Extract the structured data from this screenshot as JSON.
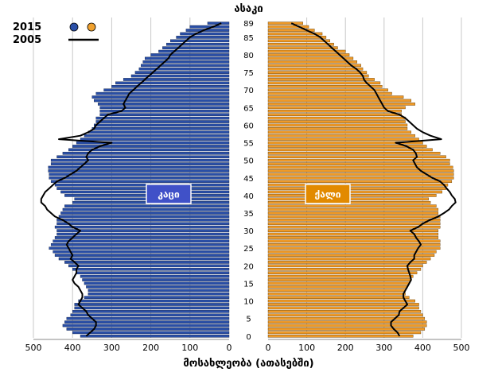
{
  "chart_data": {
    "type": "bar",
    "orientation": "horizontal",
    "layout": "population-pyramid",
    "age_axis_title": "ასაკი",
    "value_axis_title": "მოსახლეობა (ათასებში)",
    "age_tick_labels": [
      "0",
      "5",
      "10",
      "15",
      "20",
      "25",
      "30",
      "35",
      "40",
      "45",
      "50",
      "55",
      "60",
      "65",
      "70",
      "75",
      "80",
      "85",
      "89"
    ],
    "value_tick_labels_left": [
      "500",
      "400",
      "300",
      "200",
      "100",
      "0"
    ],
    "value_tick_labels_right": [
      "0",
      "100",
      "200",
      "300",
      "400",
      "500"
    ],
    "xlim": [
      0,
      500
    ],
    "age_range": [
      0,
      89
    ],
    "grid": true,
    "legend_position": "top-left",
    "legend": [
      {
        "label": "2015",
        "kind": "markers",
        "colors": [
          "#2a4fa7",
          "#f0a12e"
        ]
      },
      {
        "label": "2005",
        "kind": "line",
        "color": "#000000"
      }
    ],
    "panels": [
      {
        "side": "left",
        "label": "კაცი",
        "bar_color": "#2a4fa7",
        "box_color": "#4051c8"
      },
      {
        "side": "right",
        "label": "ქალი",
        "bar_color": "#ef9a28",
        "box_color": "#e28a00"
      }
    ],
    "ages": [
      0,
      1,
      2,
      3,
      4,
      5,
      6,
      7,
      8,
      9,
      10,
      11,
      12,
      13,
      14,
      15,
      16,
      17,
      18,
      19,
      20,
      21,
      22,
      23,
      24,
      25,
      26,
      27,
      28,
      29,
      30,
      31,
      32,
      33,
      34,
      35,
      36,
      37,
      38,
      39,
      40,
      41,
      42,
      43,
      44,
      45,
      46,
      47,
      48,
      49,
      50,
      51,
      52,
      53,
      54,
      55,
      56,
      57,
      58,
      59,
      60,
      61,
      62,
      63,
      64,
      65,
      66,
      67,
      68,
      69,
      70,
      71,
      72,
      73,
      74,
      75,
      76,
      77,
      78,
      79,
      80,
      81,
      82,
      83,
      84,
      85,
      86,
      87,
      88,
      89
    ],
    "series": [
      {
        "name": "2015",
        "sex": "კაცი",
        "values": [
          380,
          400,
          415,
          425,
          420,
          415,
          405,
          400,
          395,
          395,
          385,
          370,
          360,
          360,
          365,
          370,
          375,
          380,
          390,
          400,
          410,
          420,
          435,
          445,
          450,
          460,
          455,
          450,
          445,
          440,
          440,
          445,
          440,
          440,
          435,
          430,
          425,
          420,
          400,
          395,
          420,
          430,
          440,
          445,
          455,
          460,
          460,
          462,
          462,
          455,
          455,
          440,
          425,
          410,
          400,
          390,
          380,
          370,
          360,
          350,
          345,
          340,
          340,
          330,
          330,
          330,
          335,
          345,
          350,
          340,
          320,
          300,
          290,
          270,
          250,
          240,
          230,
          225,
          220,
          215,
          200,
          180,
          170,
          160,
          150,
          135,
          125,
          110,
          100,
          55
        ]
      },
      {
        "name": "2015",
        "sex": "ქალი",
        "values": [
          375,
          395,
          405,
          410,
          410,
          405,
          400,
          395,
          390,
          390,
          380,
          365,
          355,
          355,
          360,
          365,
          370,
          375,
          385,
          395,
          400,
          410,
          420,
          430,
          435,
          445,
          445,
          445,
          440,
          440,
          440,
          445,
          445,
          445,
          445,
          440,
          440,
          435,
          420,
          415,
          435,
          450,
          460,
          465,
          475,
          480,
          480,
          480,
          478,
          470,
          470,
          460,
          445,
          425,
          410,
          400,
          390,
          380,
          370,
          360,
          360,
          355,
          355,
          345,
          345,
          355,
          380,
          370,
          350,
          320,
          310,
          295,
          290,
          275,
          260,
          255,
          245,
          240,
          230,
          220,
          210,
          200,
          180,
          170,
          160,
          150,
          140,
          120,
          105,
          90
        ]
      },
      {
        "name": "2005",
        "sex": "კაცი",
        "values": [
          365,
          355,
          345,
          340,
          340,
          350,
          360,
          365,
          375,
          385,
          380,
          375,
          375,
          380,
          385,
          395,
          400,
          395,
          390,
          390,
          385,
          395,
          405,
          400,
          405,
          410,
          415,
          410,
          400,
          390,
          380,
          400,
          410,
          425,
          445,
          455,
          465,
          470,
          480,
          480,
          475,
          470,
          460,
          450,
          440,
          420,
          405,
          390,
          380,
          370,
          360,
          365,
          360,
          350,
          330,
          300,
          435,
          380,
          360,
          345,
          340,
          330,
          320,
          310,
          275,
          265,
          270,
          265,
          260,
          255,
          245,
          235,
          225,
          215,
          205,
          195,
          185,
          175,
          165,
          155,
          150,
          140,
          130,
          120,
          110,
          100,
          85,
          65,
          40,
          20
        ]
      },
      {
        "name": "2005",
        "sex": "ქალი",
        "values": [
          340,
          335,
          325,
          318,
          318,
          328,
          338,
          340,
          350,
          360,
          355,
          350,
          350,
          355,
          360,
          365,
          370,
          368,
          365,
          362,
          360,
          368,
          378,
          378,
          383,
          388,
          395,
          390,
          383,
          378,
          368,
          388,
          400,
          418,
          440,
          455,
          468,
          475,
          485,
          483,
          475,
          470,
          462,
          455,
          445,
          425,
          410,
          395,
          385,
          380,
          375,
          385,
          382,
          375,
          358,
          330,
          448,
          420,
          400,
          385,
          375,
          365,
          355,
          340,
          310,
          300,
          295,
          290,
          285,
          280,
          275,
          265,
          255,
          248,
          245,
          238,
          228,
          215,
          205,
          195,
          185,
          175,
          165,
          155,
          145,
          135,
          120,
          100,
          80,
          60
        ]
      }
    ]
  }
}
